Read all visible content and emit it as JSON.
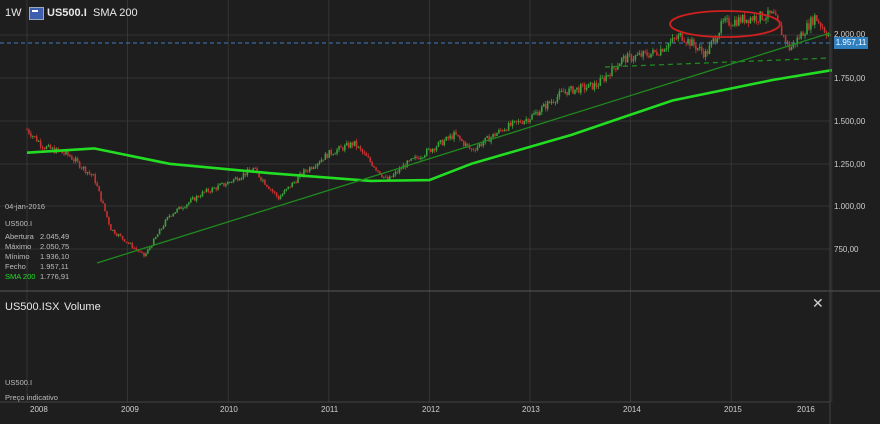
{
  "header": {
    "timeframe": "1W",
    "symbol": "US500.I",
    "indicator": "SMA 200"
  },
  "price_axis": {
    "labels": [
      "2.000,00",
      "1.750,00",
      "1.500,00",
      "1.250,00",
      "1.000,00",
      "750,00"
    ],
    "current_price_badge": "1.957,11"
  },
  "time_axis": {
    "labels": [
      "2008",
      "2009",
      "2010",
      "2011",
      "2012",
      "2013",
      "2014",
      "2015",
      "2016"
    ]
  },
  "info": {
    "date": "04-jan-2016",
    "symbol": "US500.I",
    "rows": [
      {
        "label": "Abertura",
        "value": "2.045,49"
      },
      {
        "label": "Máximo",
        "value": "2.050,75"
      },
      {
        "label": "Mínimo",
        "value": "1.936,10"
      },
      {
        "label": "Fecho",
        "value": "1.957,11"
      },
      {
        "label": "SMA 200",
        "value": "1.776,91"
      }
    ]
  },
  "volume_panel": {
    "symbol": "US500.ISX",
    "title": "Volume",
    "sub_symbol": "US500.I",
    "note": "Preço indicativo"
  },
  "colors": {
    "background": "#1e1e1e",
    "grid": "#3a3a3a",
    "up": "#3aa33a",
    "down": "#c83232",
    "sma": "#22dd22",
    "trendline": "#1e8a1e",
    "badge": "#2e7fc0",
    "highlight": "#d02020"
  },
  "chart_data": {
    "type": "candlestick",
    "x_axis": [
      "2008",
      "2009",
      "2010",
      "2011",
      "2012",
      "2013",
      "2014",
      "2015",
      "2016"
    ],
    "ylim": [
      570,
      2060
    ],
    "close_path": [
      [
        "2008-01",
        1430
      ],
      [
        "2008-03",
        1330
      ],
      [
        "2008-06",
        1280
      ],
      [
        "2008-09",
        1150
      ],
      [
        "2008-11",
        850
      ],
      [
        "2009-03",
        690
      ],
      [
        "2009-06",
        930
      ],
      [
        "2009-10",
        1060
      ],
      [
        "2010-01",
        1120
      ],
      [
        "2010-04",
        1200
      ],
      [
        "2010-07",
        1030
      ],
      [
        "2010-10",
        1180
      ],
      [
        "2011-01",
        1290
      ],
      [
        "2011-04",
        1350
      ],
      [
        "2011-08",
        1130
      ],
      [
        "2011-10",
        1220
      ],
      [
        "2012-01",
        1310
      ],
      [
        "2012-04",
        1400
      ],
      [
        "2012-06",
        1310
      ],
      [
        "2012-10",
        1440
      ],
      [
        "2013-01",
        1500
      ],
      [
        "2013-05",
        1650
      ],
      [
        "2013-09",
        1690
      ],
      [
        "2013-12",
        1840
      ],
      [
        "2014-04",
        1880
      ],
      [
        "2014-07",
        1980
      ],
      [
        "2014-10",
        1870
      ],
      [
        "2014-12",
        2050
      ],
      [
        "2015-03",
        2080
      ],
      [
        "2015-06",
        2100
      ],
      [
        "2015-08",
        1900
      ],
      [
        "2015-11",
        2090
      ],
      [
        "2016-01",
        1957.11
      ]
    ],
    "sma200": [
      [
        "2008-01",
        1295
      ],
      [
        "2008-09",
        1320
      ],
      [
        "2009-06",
        1230
      ],
      [
        "2010-06",
        1175
      ],
      [
        "2011-06",
        1130
      ],
      [
        "2012-01",
        1135
      ],
      [
        "2012-06",
        1230
      ],
      [
        "2013-06",
        1400
      ],
      [
        "2014-06",
        1600
      ],
      [
        "2015-06",
        1720
      ],
      [
        "2016-01",
        1776.91
      ]
    ]
  }
}
